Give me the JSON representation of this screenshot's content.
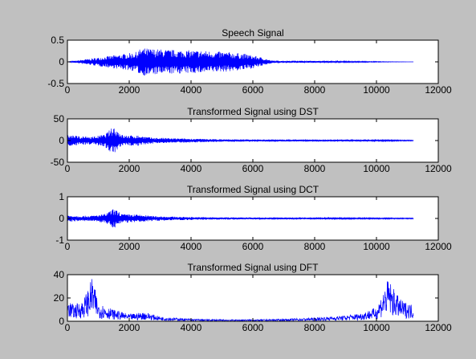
{
  "figure": {
    "background": "#c0c0c0",
    "axes_background": "#ffffff",
    "line_color": "#0000ff"
  },
  "chart_data": [
    {
      "type": "line",
      "title": "Speech Signal",
      "xlabel": "",
      "ylabel": "",
      "xlim": [
        0,
        12000
      ],
      "ylim": [
        -0.5,
        0.5
      ],
      "xticks": [
        "0",
        "2000",
        "4000",
        "6000",
        "8000",
        "10000",
        "12000"
      ],
      "yticks": [
        "-0.5",
        "0",
        "0.5"
      ],
      "grid": false,
      "series": [
        {
          "color": "#0000ff",
          "points_x": [
            0,
            2200,
            2400,
            2800,
            3300,
            3800,
            4300,
            4800,
            5300,
            5800,
            6300,
            6600,
            11200
          ],
          "points_y": [
            0,
            0.22,
            0.32,
            0.3,
            0.28,
            0.27,
            0.26,
            0.24,
            0.22,
            0.18,
            0.1,
            0.03,
            0
          ],
          "envelope": "symmetric"
        }
      ]
    },
    {
      "type": "line",
      "title": "Transformed Signal using DST",
      "xlabel": "",
      "ylabel": "",
      "xlim": [
        0,
        12000
      ],
      "ylim": [
        -50,
        50
      ],
      "xticks": [
        "0",
        "2000",
        "4000",
        "6000",
        "8000",
        "10000",
        "12000"
      ],
      "yticks": [
        "-50",
        "0",
        "50"
      ],
      "grid": false,
      "series": [
        {
          "color": "#0000ff",
          "points_x": [
            0,
            400,
            800,
            1200,
            1500,
            1800,
            2300,
            2700,
            3500,
            5000,
            7000,
            9000,
            11200
          ],
          "points_y": [
            14,
            10,
            9,
            14,
            33,
            12,
            12,
            7,
            5,
            3,
            2,
            2,
            1
          ],
          "envelope": "symmetric"
        }
      ]
    },
    {
      "type": "line",
      "title": "Transformed Signal using DCT",
      "xlabel": "",
      "ylabel": "",
      "xlim": [
        0,
        12000
      ],
      "ylim": [
        -1,
        1
      ],
      "xticks": [
        "0",
        "2000",
        "4000",
        "6000",
        "8000",
        "10000",
        "12000"
      ],
      "yticks": [
        "-1",
        "0",
        "1"
      ],
      "grid": false,
      "series": [
        {
          "color": "#0000ff",
          "points_x": [
            0,
            400,
            800,
            1200,
            1500,
            1800,
            2300,
            2700,
            3500,
            5000,
            7000,
            9000,
            11200
          ],
          "points_y": [
            0.15,
            0.12,
            0.13,
            0.2,
            0.45,
            0.2,
            0.18,
            0.12,
            0.08,
            0.05,
            0.04,
            0.03,
            0.02
          ],
          "envelope": "symmetric"
        }
      ]
    },
    {
      "type": "line",
      "title": "Transformed Signal using DFT",
      "xlabel": "",
      "ylabel": "",
      "xlim": [
        0,
        12000
      ],
      "ylim": [
        0,
        40
      ],
      "xticks": [
        "0",
        "2000",
        "4000",
        "6000",
        "8000",
        "10000",
        "12000"
      ],
      "yticks": [
        "0",
        "20",
        "40"
      ],
      "grid": false,
      "series": [
        {
          "color": "#0000ff",
          "points_x": [
            0,
            200,
            500,
            700,
            800,
            1000,
            1500,
            2000,
            2500,
            3000,
            4000,
            5000,
            5600,
            6200,
            7000,
            8000,
            9000,
            9500,
            10000,
            10400,
            10500,
            10800,
            11000,
            11200
          ],
          "points_y": [
            20,
            14,
            18,
            30,
            38,
            16,
            10,
            6,
            8,
            4,
            2,
            1.5,
            1.5,
            1.5,
            2,
            3,
            5,
            7,
            12,
            38,
            30,
            18,
            16,
            14
          ],
          "envelope": "positive"
        }
      ]
    }
  ]
}
